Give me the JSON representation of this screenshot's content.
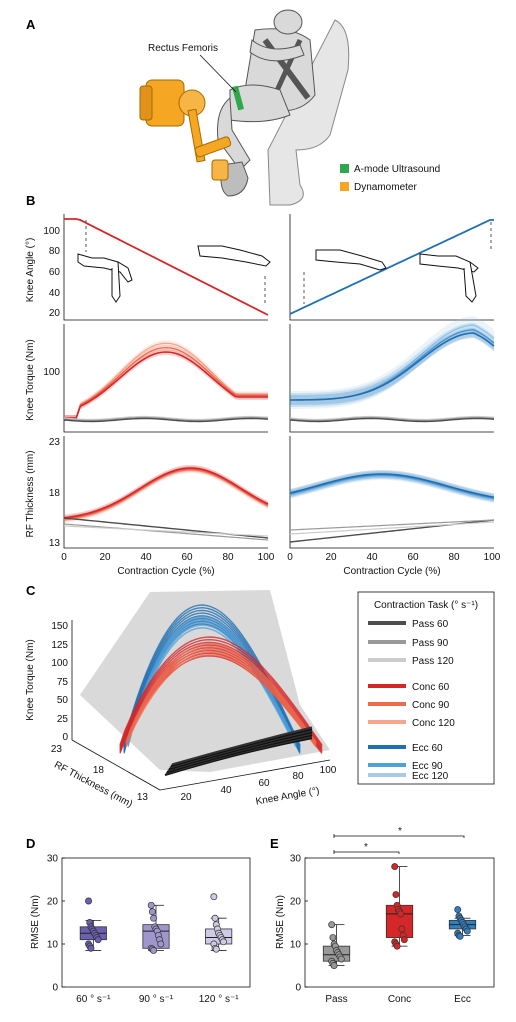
{
  "colors": {
    "ultrasound": "#2ea84a",
    "dynamometer": "#f5a623",
    "pass60": "#4d4d4d",
    "pass90": "#999999",
    "pass120": "#cccccc",
    "conc60": "#d62728",
    "conc90": "#ef6a4c",
    "conc120": "#f5a68c",
    "ecc60": "#1f6fb3",
    "ecc90": "#4f9fd8",
    "ecc120": "#a9cbe8",
    "boxD_60": "#6a5fb0",
    "boxD_90": "#9e96cc",
    "boxD_120": "#cfcae6",
    "boxE_pass": "#999999",
    "boxE_conc": "#d62728",
    "boxE_ecc": "#2f7fc1"
  },
  "panelA": {
    "letter": "A",
    "muscle_label": "Rectus Femoris",
    "legend": [
      {
        "label": "A-mode Ultrasound",
        "color": "#2ea84a"
      },
      {
        "label": "Dynamometer",
        "color": "#f5a623"
      }
    ]
  },
  "panelB": {
    "letter": "B",
    "ylabels": [
      "Knee Angle (°)",
      "Knee Torque (Nm)",
      "RF Thickness (mm)"
    ],
    "xlabel": "Contraction Cycle (%)",
    "angle_ticks": [
      "100",
      "80",
      "60",
      "40",
      "20"
    ],
    "torque_ticks": [
      "100"
    ],
    "thickness_ticks": [
      "23",
      "18",
      "13"
    ],
    "x_ticks": [
      "0",
      "20",
      "40",
      "60",
      "80",
      "100"
    ]
  },
  "panelC": {
    "letter": "C",
    "zlabel": "Knee Torque (Nm)",
    "z_ticks": [
      "150",
      "125",
      "100",
      "75",
      "50",
      "25",
      "0"
    ],
    "ylabel": "RF Thickness (mm)",
    "y_ticks": [
      "23",
      "18",
      "13"
    ],
    "xlabel": "Knee Angle (°)",
    "x_ticks": [
      "20",
      "40",
      "60",
      "80",
      "100"
    ],
    "legend_title": "Contraction Task (° s⁻¹)",
    "legend": [
      {
        "label": "Pass 60",
        "color": "#4d4d4d"
      },
      {
        "label": "Pass 90",
        "color": "#999999"
      },
      {
        "label": "Pass 120",
        "color": "#cccccc"
      },
      {
        "label": "Conc 60",
        "color": "#d62728"
      },
      {
        "label": "Conc 90",
        "color": "#ef6a4c"
      },
      {
        "label": "Conc 120",
        "color": "#f5a68c"
      },
      {
        "label": "Ecc 60",
        "color": "#1f6fb3"
      },
      {
        "label": "Ecc 90",
        "color": "#4f9fd8"
      },
      {
        "label": "Ecc 120",
        "color": "#a9cbe8"
      }
    ]
  },
  "panelD": {
    "letter": "D",
    "ylabel": "RMSE (Nm)",
    "y_ticks": [
      "30",
      "20",
      "10",
      "0"
    ],
    "categories": [
      "60 ° s⁻¹",
      "90 ° s⁻¹",
      "120 ° s⁻¹"
    ]
  },
  "panelE": {
    "letter": "E",
    "ylabel": "RMSE (Nm)",
    "y_ticks": [
      "30",
      "20",
      "10",
      "0"
    ],
    "categories": [
      "Pass",
      "Conc",
      "Ecc"
    ],
    "sig1": "*",
    "sig2": "*"
  },
  "chart_data": [
    {
      "type": "box",
      "panel": "D",
      "categories": [
        "60 ° s⁻¹",
        "90 ° s⁻¹",
        "120 ° s⁻¹"
      ],
      "ylabel": "RMSE (Nm)",
      "ylim": [
        0,
        30
      ],
      "boxes": [
        {
          "q1": 11,
          "median": 12.5,
          "q3": 14,
          "whisker_low": 8.5,
          "whisker_high": 15.5,
          "points": [
            20,
            15,
            14,
            13.5,
            13,
            12.5,
            12,
            11.5,
            11,
            10,
            9.5,
            9
          ]
        },
        {
          "q1": 9,
          "median": 13,
          "q3": 14.5,
          "whisker_low": 8.5,
          "whisker_high": 19,
          "points": [
            19,
            17.5,
            16,
            14,
            13.5,
            13,
            12,
            11,
            10,
            9,
            8.8,
            8.5
          ]
        },
        {
          "q1": 10,
          "median": 11.5,
          "q3": 13.5,
          "whisker_low": 8.5,
          "whisker_high": 16,
          "points": [
            21,
            16,
            14.5,
            13.5,
            12.5,
            12,
            11.5,
            11,
            10.5,
            10,
            9,
            8.8
          ]
        }
      ]
    },
    {
      "type": "box",
      "panel": "E",
      "categories": [
        "Pass",
        "Conc",
        "Ecc"
      ],
      "ylabel": "RMSE (Nm)",
      "ylim": [
        0,
        30
      ],
      "boxes": [
        {
          "q1": 6,
          "median": 7.5,
          "q3": 9.5,
          "whisker_low": 5,
          "whisker_high": 14.5,
          "points": [
            14.5,
            11.5,
            10,
            9.5,
            8.5,
            8,
            7.5,
            7,
            6.5,
            6,
            5.5,
            5
          ]
        },
        {
          "q1": 11.5,
          "median": 17,
          "q3": 19,
          "whisker_low": 9.5,
          "whisker_high": 28,
          "points": [
            28,
            21.5,
            19,
            18,
            17.5,
            17,
            13.5,
            12,
            11,
            10.5,
            10,
            9.5
          ]
        },
        {
          "q1": 13.5,
          "median": 14.5,
          "q3": 15.5,
          "whisker_low": 12,
          "whisker_high": 16,
          "points": [
            18,
            16.5,
            16,
            15.5,
            15,
            14.5,
            14,
            13.5,
            13,
            12.5,
            12,
            11.8
          ]
        }
      ]
    }
  ]
}
